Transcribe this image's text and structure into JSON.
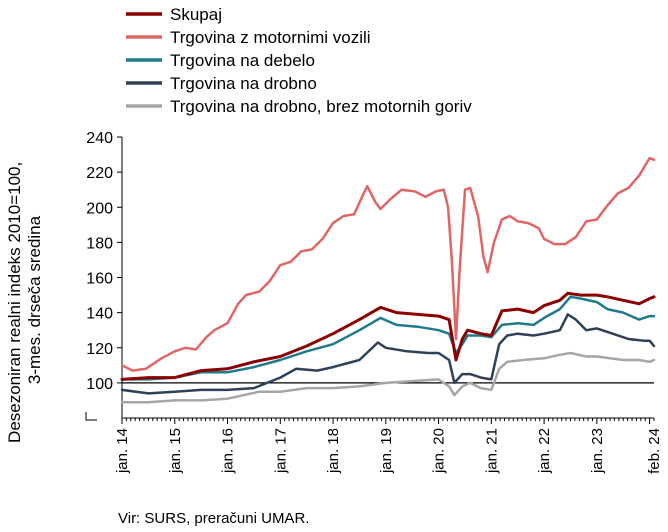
{
  "chart_data": {
    "type": "line",
    "ylabel": [
      "Desezoniran realni indeks 2010=100,",
      "3-mes. drseča sredina"
    ],
    "yticks": [
      "100",
      "120",
      "140",
      "160",
      "180",
      "200",
      "220",
      "240"
    ],
    "ylim": [
      80,
      240
    ],
    "xlim": [
      2014.0,
      2024.083
    ],
    "xticks": [
      {
        "label": "jan. 14",
        "x": 2014.0
      },
      {
        "label": "jan. 15",
        "x": 2015.0
      },
      {
        "label": "jan. 16",
        "x": 2016.0
      },
      {
        "label": "jan. 17",
        "x": 2017.0
      },
      {
        "label": "jan. 18",
        "x": 2018.0
      },
      {
        "label": "jan. 19",
        "x": 2019.0
      },
      {
        "label": "jan. 20",
        "x": 2020.0
      },
      {
        "label": "jan. 21",
        "x": 2021.0
      },
      {
        "label": "jan. 22",
        "x": 2022.0
      },
      {
        "label": "jan. 23",
        "x": 2023.0
      },
      {
        "label": "feb. 24",
        "x": 2024.083
      }
    ],
    "reference_line": 100,
    "legend_position": "top",
    "series": [
      {
        "name": "Skupaj",
        "color": "#8b0000",
        "width": 3,
        "points": [
          [
            2014.0,
            102
          ],
          [
            2014.5,
            103
          ],
          [
            2015.0,
            103
          ],
          [
            2015.5,
            107
          ],
          [
            2016.0,
            108
          ],
          [
            2016.5,
            112
          ],
          [
            2017.0,
            115
          ],
          [
            2017.5,
            121
          ],
          [
            2018.0,
            128
          ],
          [
            2018.5,
            136
          ],
          [
            2018.9,
            143
          ],
          [
            2019.2,
            140
          ],
          [
            2019.6,
            139
          ],
          [
            2020.0,
            138
          ],
          [
            2020.2,
            136
          ],
          [
            2020.33,
            113
          ],
          [
            2020.45,
            125
          ],
          [
            2020.55,
            130
          ],
          [
            2020.8,
            128
          ],
          [
            2021.0,
            127
          ],
          [
            2021.2,
            141
          ],
          [
            2021.5,
            142
          ],
          [
            2021.8,
            140
          ],
          [
            2022.0,
            144
          ],
          [
            2022.3,
            147
          ],
          [
            2022.45,
            151
          ],
          [
            2022.7,
            150
          ],
          [
            2023.0,
            150
          ],
          [
            2023.2,
            149
          ],
          [
            2023.5,
            147
          ],
          [
            2023.8,
            145
          ],
          [
            2024.0,
            148
          ],
          [
            2024.083,
            149
          ]
        ]
      },
      {
        "name": "Trgovina z motornimi vozili",
        "color": "#e06666",
        "width": 2.5,
        "points": [
          [
            2014.0,
            110
          ],
          [
            2014.2,
            107
          ],
          [
            2014.45,
            108
          ],
          [
            2014.75,
            114
          ],
          [
            2015.0,
            118
          ],
          [
            2015.2,
            120
          ],
          [
            2015.4,
            119
          ],
          [
            2015.6,
            126
          ],
          [
            2015.75,
            130
          ],
          [
            2016.0,
            134
          ],
          [
            2016.2,
            145
          ],
          [
            2016.35,
            150
          ],
          [
            2016.6,
            152
          ],
          [
            2016.8,
            158
          ],
          [
            2017.0,
            167
          ],
          [
            2017.2,
            169
          ],
          [
            2017.4,
            175
          ],
          [
            2017.6,
            176
          ],
          [
            2017.8,
            182
          ],
          [
            2018.0,
            191
          ],
          [
            2018.2,
            195
          ],
          [
            2018.4,
            196
          ],
          [
            2018.55,
            206
          ],
          [
            2018.65,
            212
          ],
          [
            2018.8,
            203
          ],
          [
            2018.9,
            199
          ],
          [
            2019.1,
            205
          ],
          [
            2019.3,
            210
          ],
          [
            2019.55,
            209
          ],
          [
            2019.75,
            206
          ],
          [
            2019.95,
            209
          ],
          [
            2020.1,
            210
          ],
          [
            2020.18,
            200
          ],
          [
            2020.25,
            170
          ],
          [
            2020.33,
            125
          ],
          [
            2020.4,
            165
          ],
          [
            2020.5,
            210
          ],
          [
            2020.6,
            211
          ],
          [
            2020.75,
            195
          ],
          [
            2020.85,
            172
          ],
          [
            2020.93,
            163
          ],
          [
            2021.05,
            180
          ],
          [
            2021.2,
            193
          ],
          [
            2021.35,
            195
          ],
          [
            2021.5,
            192
          ],
          [
            2021.7,
            191
          ],
          [
            2021.9,
            188
          ],
          [
            2022.0,
            182
          ],
          [
            2022.2,
            179
          ],
          [
            2022.4,
            179
          ],
          [
            2022.6,
            183
          ],
          [
            2022.8,
            192
          ],
          [
            2023.0,
            193
          ],
          [
            2023.2,
            201
          ],
          [
            2023.4,
            208
          ],
          [
            2023.6,
            211
          ],
          [
            2023.8,
            218
          ],
          [
            2024.0,
            228
          ],
          [
            2024.083,
            227
          ]
        ]
      },
      {
        "name": "Trgovina na debelo",
        "color": "#1f7a8c",
        "width": 2.5,
        "points": [
          [
            2014.0,
            102
          ],
          [
            2014.5,
            102
          ],
          [
            2015.0,
            103
          ],
          [
            2015.5,
            106
          ],
          [
            2016.0,
            106
          ],
          [
            2016.5,
            109
          ],
          [
            2017.0,
            113
          ],
          [
            2017.5,
            118
          ],
          [
            2018.0,
            122
          ],
          [
            2018.5,
            130
          ],
          [
            2018.9,
            137
          ],
          [
            2019.2,
            133
          ],
          [
            2019.6,
            132
          ],
          [
            2020.0,
            130
          ],
          [
            2020.2,
            128
          ],
          [
            2020.33,
            117
          ],
          [
            2020.45,
            122
          ],
          [
            2020.55,
            127
          ],
          [
            2020.8,
            127
          ],
          [
            2021.0,
            126
          ],
          [
            2021.2,
            133
          ],
          [
            2021.5,
            134
          ],
          [
            2021.8,
            133
          ],
          [
            2022.0,
            137
          ],
          [
            2022.3,
            142
          ],
          [
            2022.5,
            149
          ],
          [
            2022.7,
            148
          ],
          [
            2023.0,
            146
          ],
          [
            2023.2,
            142
          ],
          [
            2023.5,
            140
          ],
          [
            2023.8,
            136
          ],
          [
            2024.0,
            138
          ],
          [
            2024.083,
            138
          ]
        ]
      },
      {
        "name": "Trgovina na drobno",
        "color": "#2e4157",
        "width": 2.5,
        "points": [
          [
            2014.0,
            96
          ],
          [
            2014.5,
            94
          ],
          [
            2015.0,
            95
          ],
          [
            2015.5,
            96
          ],
          [
            2016.0,
            96
          ],
          [
            2016.5,
            97
          ],
          [
            2017.0,
            103
          ],
          [
            2017.3,
            108
          ],
          [
            2017.7,
            107
          ],
          [
            2018.0,
            109
          ],
          [
            2018.5,
            113
          ],
          [
            2018.85,
            123
          ],
          [
            2019.0,
            120
          ],
          [
            2019.4,
            118
          ],
          [
            2019.8,
            117
          ],
          [
            2020.0,
            117
          ],
          [
            2020.2,
            113
          ],
          [
            2020.3,
            100
          ],
          [
            2020.45,
            105
          ],
          [
            2020.6,
            105
          ],
          [
            2020.8,
            103
          ],
          [
            2021.0,
            102
          ],
          [
            2021.15,
            122
          ],
          [
            2021.3,
            127
          ],
          [
            2021.5,
            128
          ],
          [
            2021.8,
            127
          ],
          [
            2022.0,
            128
          ],
          [
            2022.3,
            130
          ],
          [
            2022.45,
            139
          ],
          [
            2022.6,
            136
          ],
          [
            2022.8,
            130
          ],
          [
            2023.0,
            131
          ],
          [
            2023.3,
            128
          ],
          [
            2023.6,
            125
          ],
          [
            2023.9,
            124
          ],
          [
            2024.0,
            124
          ],
          [
            2024.083,
            121
          ]
        ]
      },
      {
        "name": "Trgovina na drobno, brez motornih goriv",
        "color": "#a6a6a6",
        "width": 2.5,
        "points": [
          [
            2014.0,
            89
          ],
          [
            2014.5,
            89
          ],
          [
            2015.0,
            90
          ],
          [
            2015.5,
            90
          ],
          [
            2016.0,
            91
          ],
          [
            2016.3,
            93
          ],
          [
            2016.6,
            95
          ],
          [
            2017.0,
            95
          ],
          [
            2017.5,
            97
          ],
          [
            2018.0,
            97
          ],
          [
            2018.5,
            98
          ],
          [
            2019.0,
            100
          ],
          [
            2019.5,
            101
          ],
          [
            2020.0,
            102
          ],
          [
            2020.2,
            98
          ],
          [
            2020.3,
            93
          ],
          [
            2020.45,
            98
          ],
          [
            2020.6,
            100
          ],
          [
            2020.8,
            97
          ],
          [
            2021.0,
            96
          ],
          [
            2021.15,
            108
          ],
          [
            2021.3,
            112
          ],
          [
            2021.6,
            113
          ],
          [
            2022.0,
            114
          ],
          [
            2022.3,
            116
          ],
          [
            2022.5,
            117
          ],
          [
            2022.8,
            115
          ],
          [
            2023.0,
            115
          ],
          [
            2023.5,
            113
          ],
          [
            2023.8,
            113
          ],
          [
            2024.0,
            112
          ],
          [
            2024.083,
            113
          ]
        ]
      }
    ]
  },
  "source": "Vir: SURS, preračuni UMAR."
}
